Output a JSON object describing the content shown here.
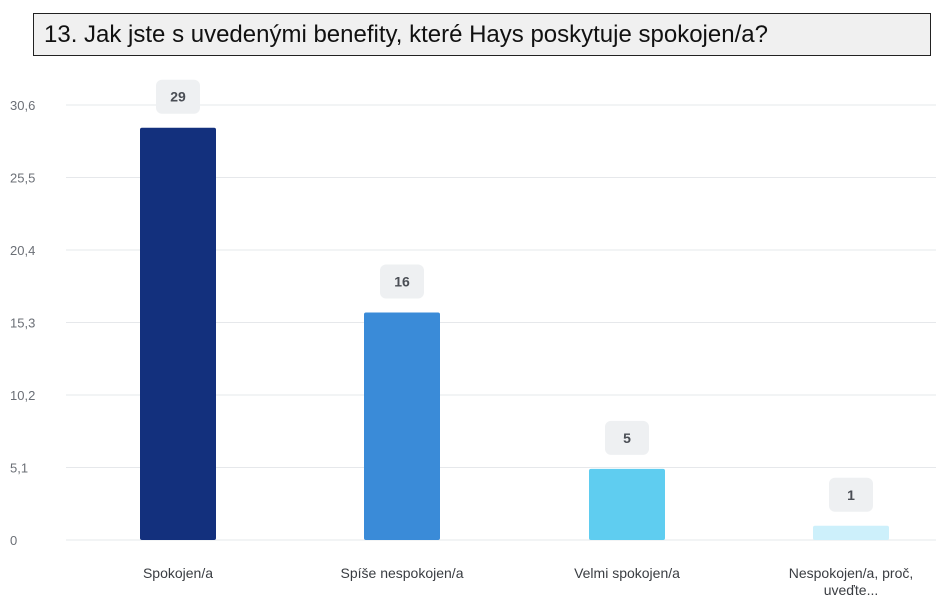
{
  "chart_data": {
    "type": "bar",
    "title": "13. Jak jste s uvedenými benefity, které Hays poskytuje spokojen/a?",
    "categories": [
      "Spokojen/a",
      "Spíše nespokojen/a",
      "Velmi spokojen/a",
      "Nespokojen/a, proč, uveďte..."
    ],
    "category_lines": [
      [
        "Spokojen/a"
      ],
      [
        "Spíše nespokojen/a"
      ],
      [
        "Velmi spokojen/a"
      ],
      [
        "Nespokojen/a, proč,",
        "uveďte..."
      ]
    ],
    "values": [
      29,
      16,
      5,
      1
    ],
    "value_labels": [
      "29",
      "16",
      "5",
      "1"
    ],
    "ylim": [
      0,
      30.6
    ],
    "yticks": [
      0,
      5.1,
      10.2,
      15.3,
      20.4,
      25.5,
      30.6
    ],
    "ytick_labels": [
      "0",
      "5,1",
      "10,2",
      "15,3",
      "20,4",
      "25,5",
      "30,6"
    ],
    "xlabel": "",
    "ylabel": "",
    "grid": true,
    "colors": [
      "#13307d",
      "#3a8bd8",
      "#5fcdf0",
      "#cdf0fb"
    ],
    "gridline_color": "#e6e8eb",
    "value_badge_color": "#eef0f2"
  }
}
